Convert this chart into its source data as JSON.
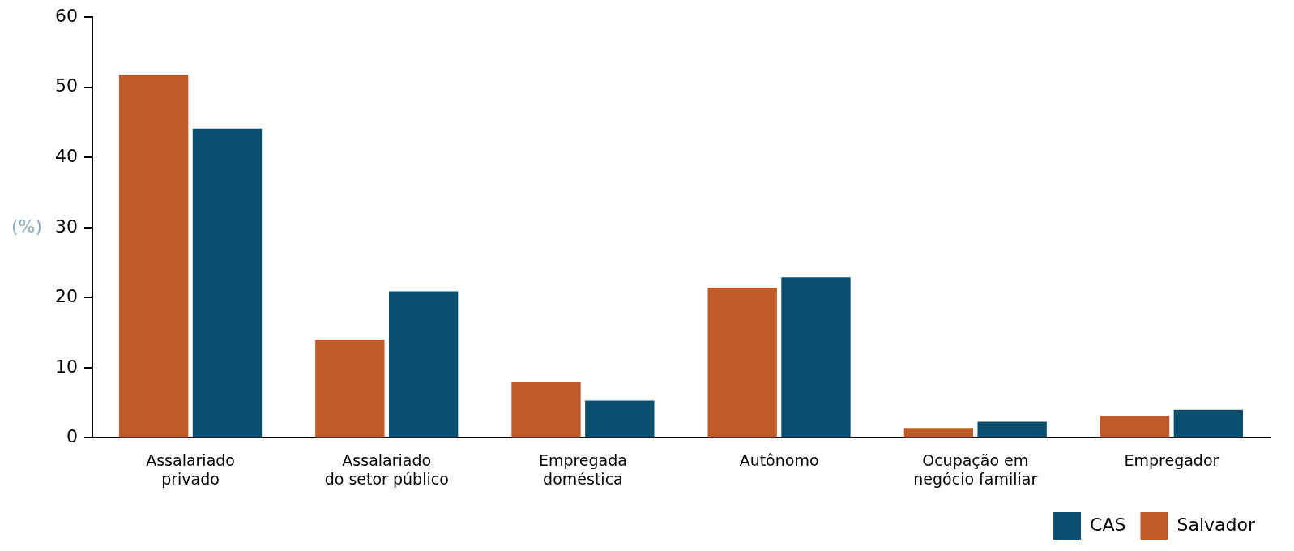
{
  "chart_data": {
    "type": "bar",
    "ylabel": "(%)",
    "categories": [
      "Assalariado\nprivado",
      "Assalariado\ndo setor público",
      "Empregada\ndoméstica",
      "Autônomo",
      "Ocupação em\nnegócio familiar",
      "Empregador"
    ],
    "series": [
      {
        "name": "Salvador",
        "color": "#c05a28",
        "values": [
          51.8,
          14.0,
          7.9,
          21.4,
          1.4,
          3.1
        ]
      },
      {
        "name": "CAS",
        "color": "#0b4f6f",
        "values": [
          44.1,
          20.9,
          5.3,
          22.9,
          2.3,
          4.0
        ]
      }
    ],
    "ylim": [
      0,
      60
    ],
    "yticks": [
      0,
      10,
      20,
      30,
      40,
      50,
      60
    ],
    "grid": false,
    "legend": "bottom right"
  }
}
